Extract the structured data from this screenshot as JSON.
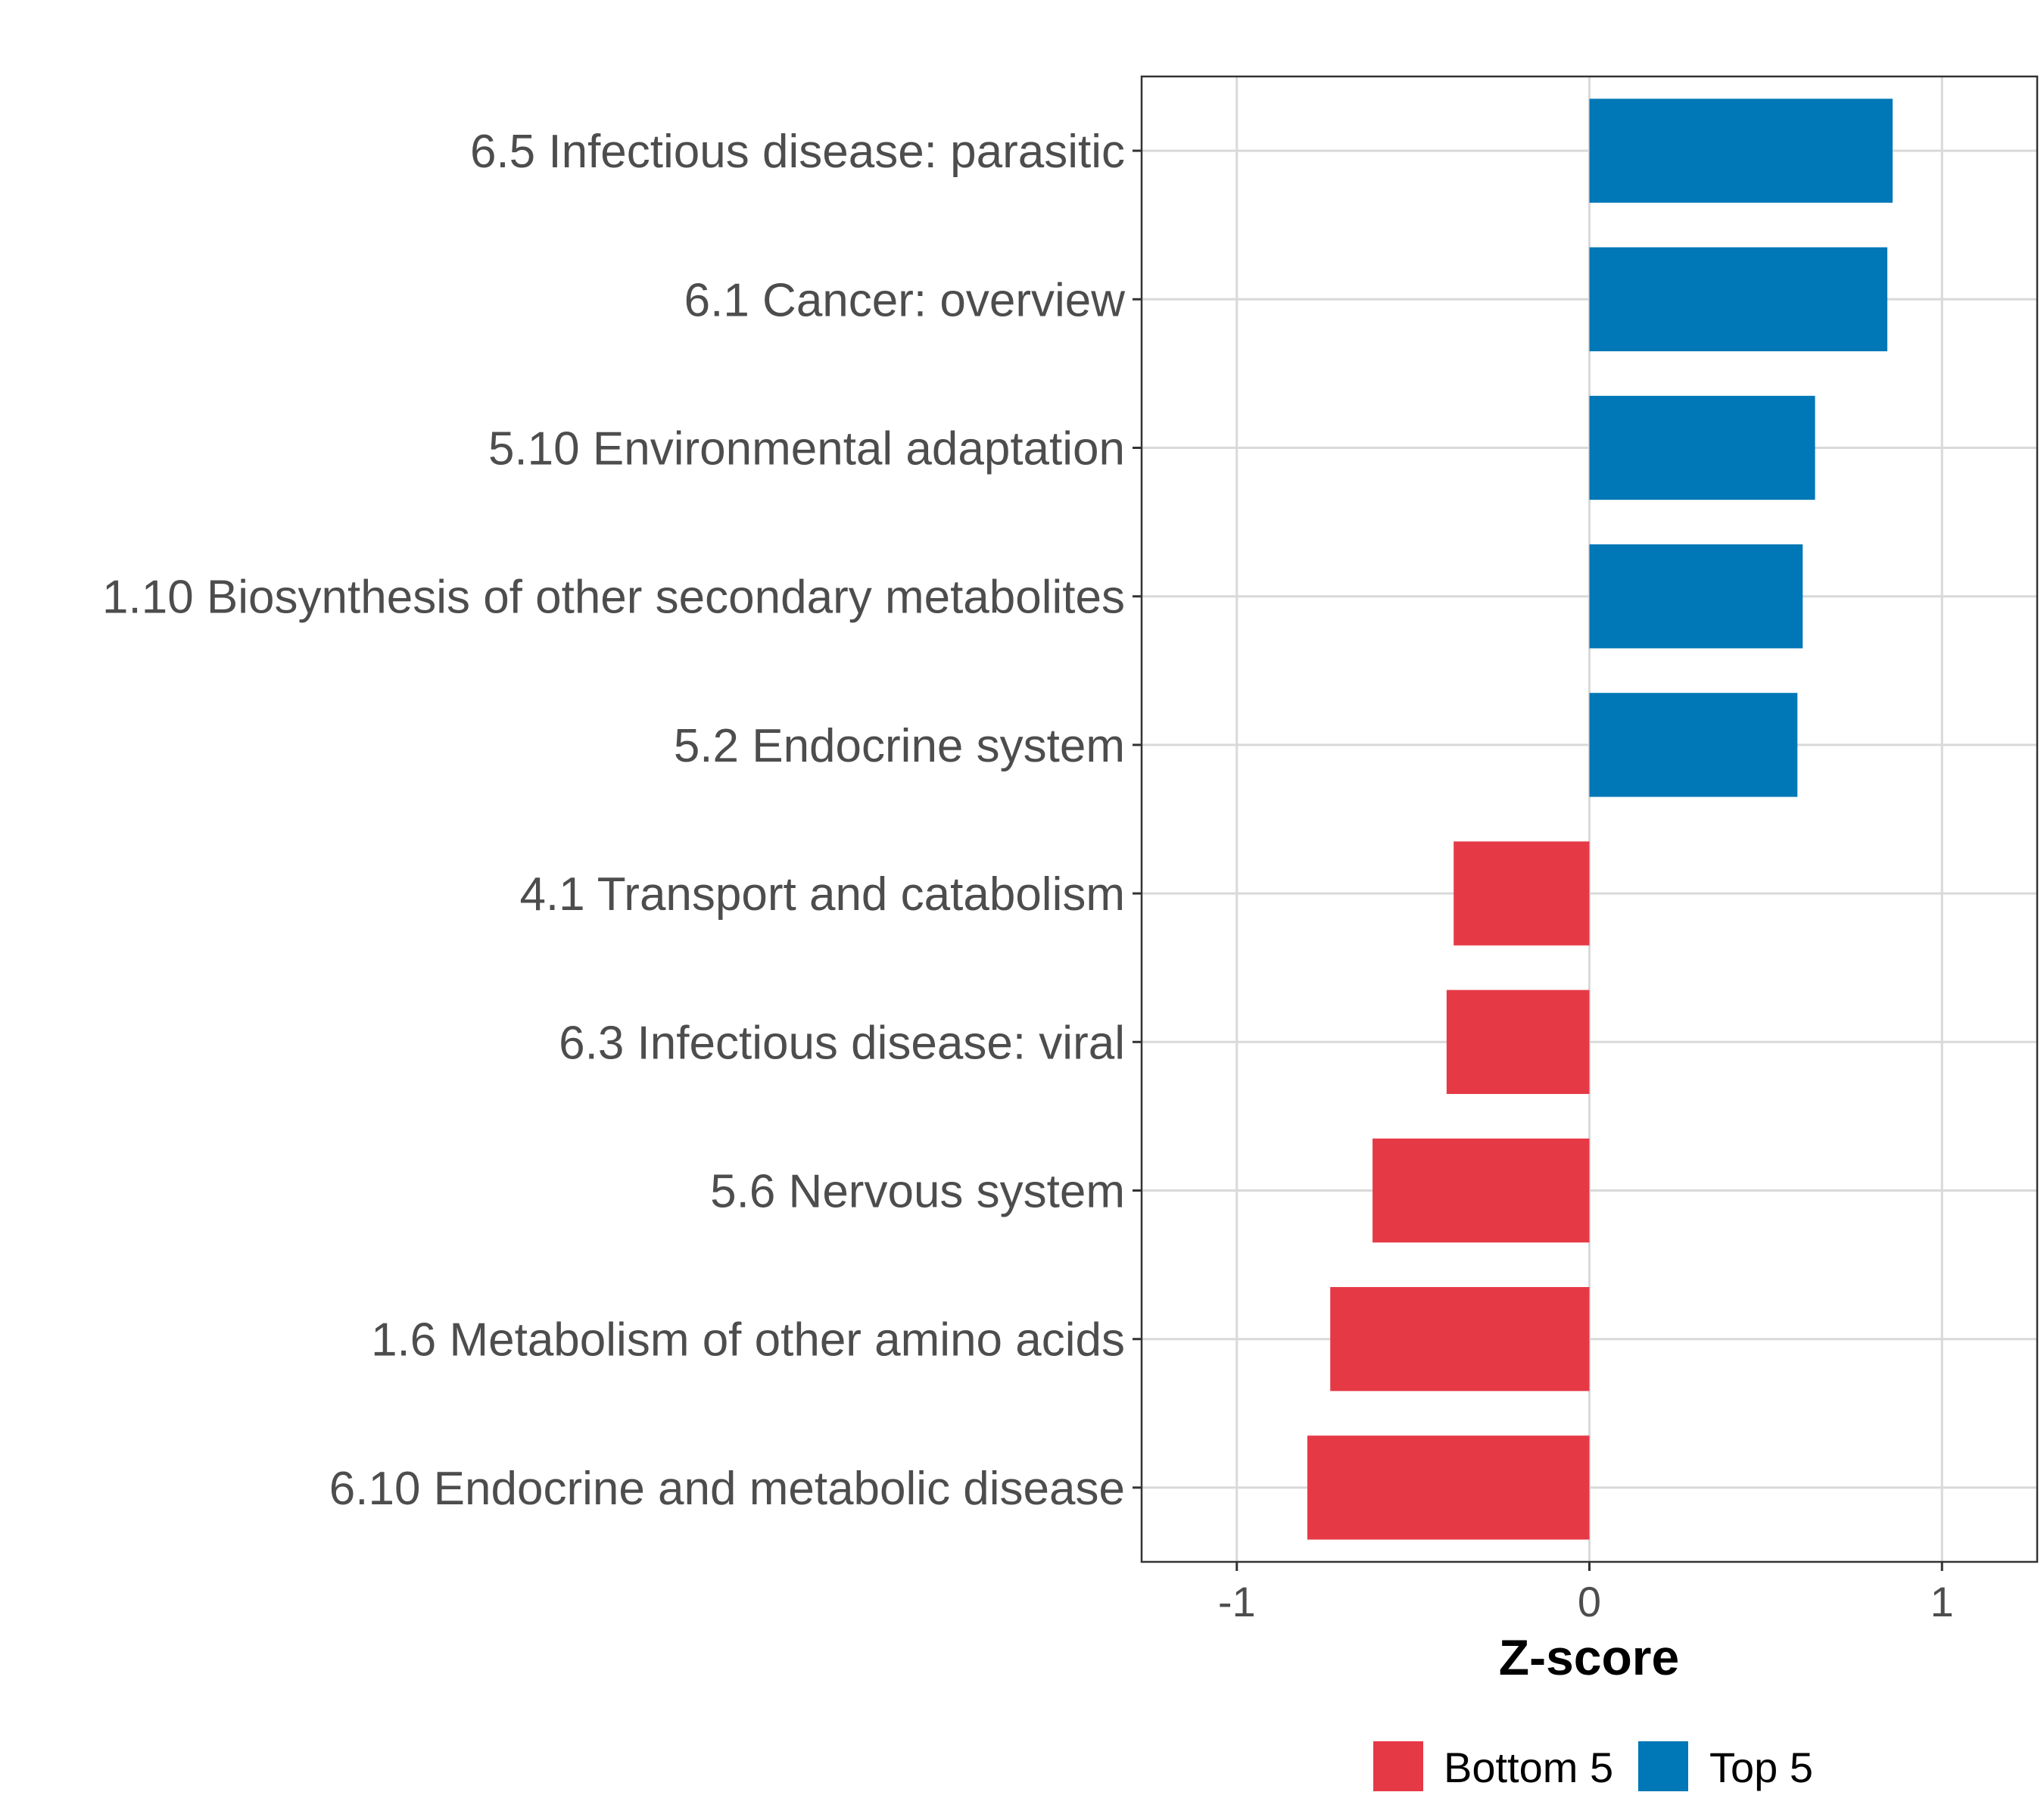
{
  "chart_data": {
    "type": "bar",
    "orientation": "horizontal",
    "categories": [
      "6.5 Infectious disease: parasitic",
      "6.1 Cancer: overview",
      "5.10 Environmental adaptation",
      "1.10 Biosynthesis of other secondary metabolites",
      "5.2 Endocrine system",
      "4.1 Transport and catabolism",
      "6.3 Infectious disease: viral",
      "5.6 Nervous system",
      "1.6 Metabolism of other amino acids",
      "6.10 Endocrine and metabolic disease"
    ],
    "values": [
      0.86,
      0.845,
      0.64,
      0.605,
      0.59,
      -0.385,
      -0.405,
      -0.615,
      -0.735,
      -0.8
    ],
    "groups": [
      "Top 5",
      "Top 5",
      "Top 5",
      "Top 5",
      "Top 5",
      "Bottom 5",
      "Bottom 5",
      "Bottom 5",
      "Bottom 5",
      "Bottom 5"
    ],
    "xlabel": "Z-score",
    "ylabel": "",
    "xlim": [
      -1.27,
      1.27
    ],
    "xticks": [
      -1,
      0,
      1
    ],
    "xtick_labels": [
      "-1",
      "0",
      "1"
    ],
    "grid": true,
    "legend": {
      "position": "bottom",
      "entries": [
        {
          "label": "Bottom 5",
          "color": "#e63946"
        },
        {
          "label": "Top 5",
          "color": "#0077b6"
        }
      ]
    },
    "colors": {
      "Top 5": "#0077b6",
      "Bottom 5": "#e63946"
    }
  }
}
